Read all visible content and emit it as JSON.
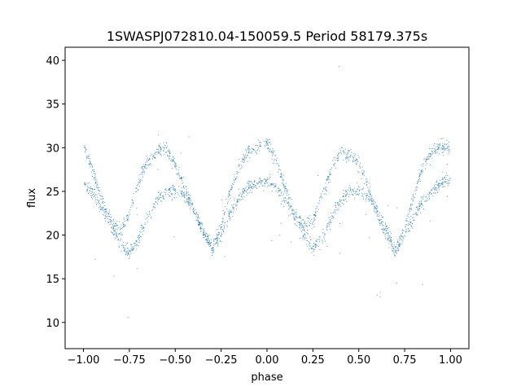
{
  "chart_data": {
    "type": "scatter",
    "title": "1SWASPJ072810.04-150059.5 Period 58179.375s",
    "xlabel": "phase",
    "ylabel": "flux",
    "xlim": [
      -1.1,
      1.1
    ],
    "ylim": [
      7.0,
      41.5
    ],
    "xticks": [
      -1.0,
      -0.75,
      -0.5,
      -0.25,
      0.0,
      0.25,
      0.5,
      0.75,
      1.0
    ],
    "xtick_labels": [
      "−1.00",
      "−0.75",
      "−0.50",
      "−0.25",
      "0.00",
      "0.25",
      "0.50",
      "0.75",
      "1.00"
    ],
    "yticks": [
      10,
      15,
      20,
      25,
      30,
      35,
      40
    ],
    "ytick_labels": [
      "10",
      "15",
      "20",
      "25",
      "30",
      "35",
      "40"
    ],
    "grid": false,
    "point_color": "#1f77b4",
    "series": [
      {
        "x": [
          -1.0,
          -0.95,
          -0.9,
          -0.85,
          -0.8,
          -0.75,
          -0.7,
          -0.65,
          -0.6,
          -0.55,
          -0.5,
          -0.45,
          -0.4,
          -0.35,
          -0.3,
          -0.25,
          -0.2,
          -0.15,
          -0.1,
          -0.05,
          0.0,
          0.05,
          0.1,
          0.15,
          0.2,
          0.25,
          0.3,
          0.35,
          0.4,
          0.45,
          0.5,
          0.55,
          0.6,
          0.65,
          0.7,
          0.75,
          0.8,
          0.85,
          0.9,
          0.95,
          1.0
        ],
        "upper_branch": [
          30.5,
          27.5,
          24.0,
          21.5,
          20.5,
          22.5,
          26.0,
          28.5,
          29.5,
          30.0,
          28.0,
          25.5,
          23.0,
          20.5,
          18.5,
          21.0,
          25.0,
          28.0,
          29.5,
          30.0,
          30.5,
          28.5,
          25.5,
          22.5,
          21.0,
          21.5,
          24.5,
          27.5,
          29.5,
          29.0,
          28.5,
          25.5,
          22.5,
          20.0,
          18.0,
          20.5,
          24.5,
          28.0,
          29.5,
          30.0,
          30.0
        ],
        "lower_branch": [
          26.0,
          25.0,
          23.0,
          21.0,
          19.0,
          18.0,
          19.5,
          22.0,
          24.0,
          25.0,
          25.0,
          24.5,
          23.0,
          20.5,
          18.5,
          20.0,
          22.5,
          24.5,
          25.5,
          26.0,
          26.0,
          25.5,
          24.0,
          22.0,
          20.0,
          18.5,
          19.5,
          22.0,
          24.0,
          25.0,
          25.0,
          24.5,
          23.0,
          20.5,
          18.5,
          20.0,
          22.0,
          24.0,
          25.0,
          26.0,
          26.5
        ]
      }
    ]
  }
}
